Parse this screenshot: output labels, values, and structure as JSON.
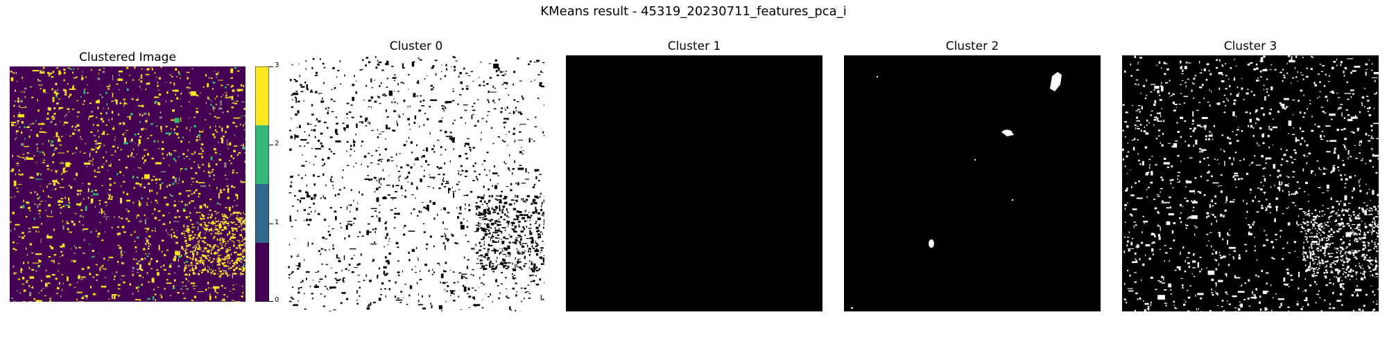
{
  "figure": {
    "suptitle": "KMeans result - 45319_20230711_features_pca_i"
  },
  "panels": [
    {
      "title": "Clustered Image"
    },
    {
      "title": "Cluster 0"
    },
    {
      "title": "Cluster 1"
    },
    {
      "title": "Cluster 2"
    },
    {
      "title": "Cluster 3"
    }
  ],
  "colorbar": {
    "ticks": [
      "0",
      "1",
      "2",
      "3"
    ],
    "colors": [
      "#440154",
      "#31688e",
      "#35b779",
      "#fde725"
    ]
  },
  "colors": {
    "viridis_low": "#440154",
    "viridis_high": "#fde725",
    "mask_black": "#000000",
    "mask_white": "#ffffff"
  }
}
